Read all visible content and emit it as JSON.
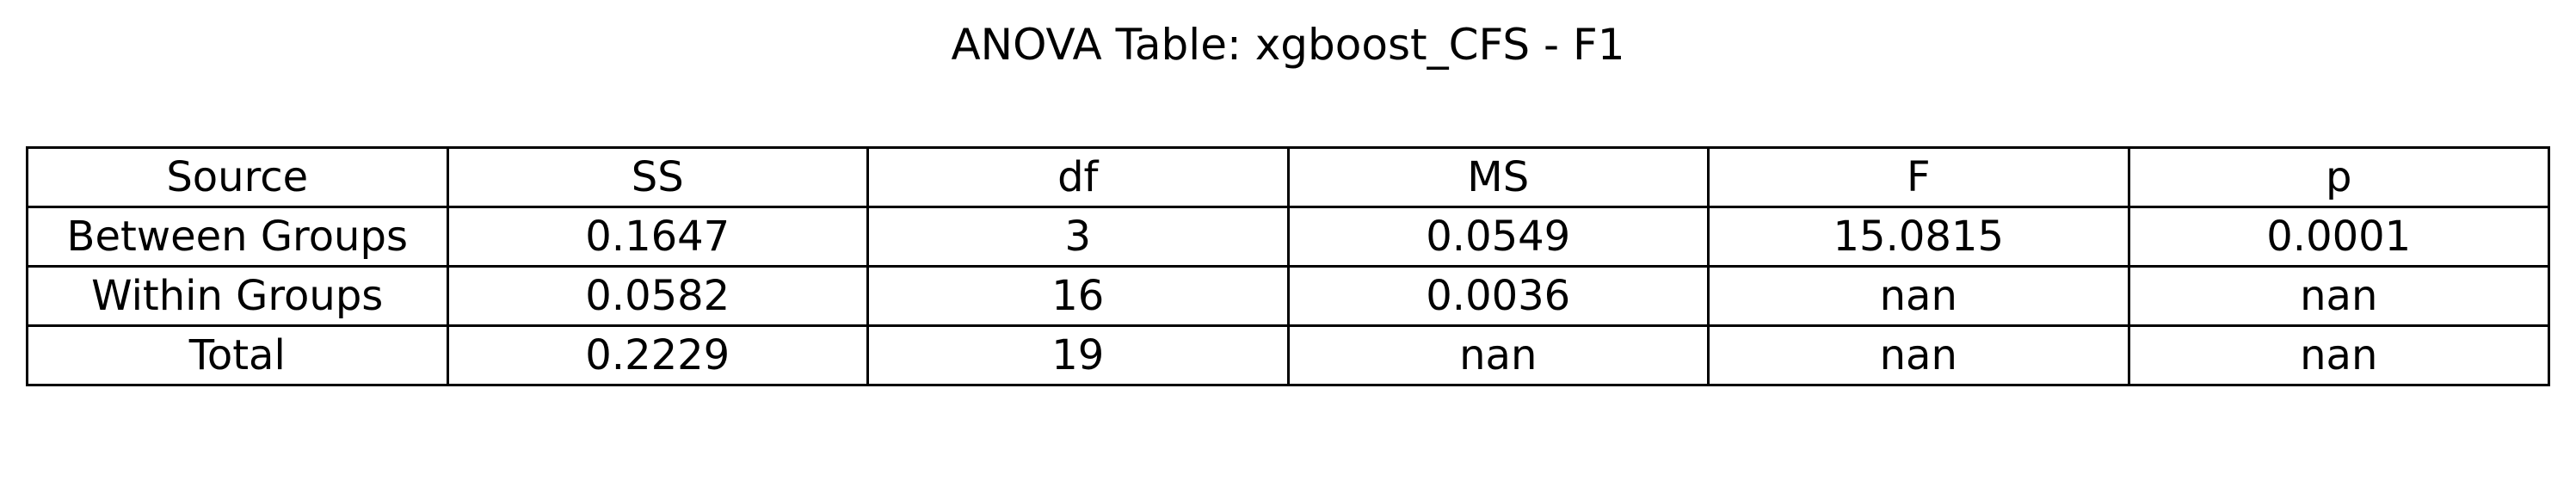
{
  "chart_data": {
    "type": "table",
    "title": "ANOVA Table: xgboost_CFS - F1",
    "columns": [
      "Source",
      "SS",
      "df",
      "MS",
      "F",
      "p"
    ],
    "rows": [
      [
        "Between Groups",
        "0.1647",
        "3",
        "0.0549",
        "15.0815",
        "0.0001"
      ],
      [
        "Within Groups",
        "0.0582",
        "16",
        "0.0036",
        "nan",
        "nan"
      ],
      [
        "Total",
        "0.2229",
        "19",
        "nan",
        "nan",
        "nan"
      ]
    ]
  }
}
